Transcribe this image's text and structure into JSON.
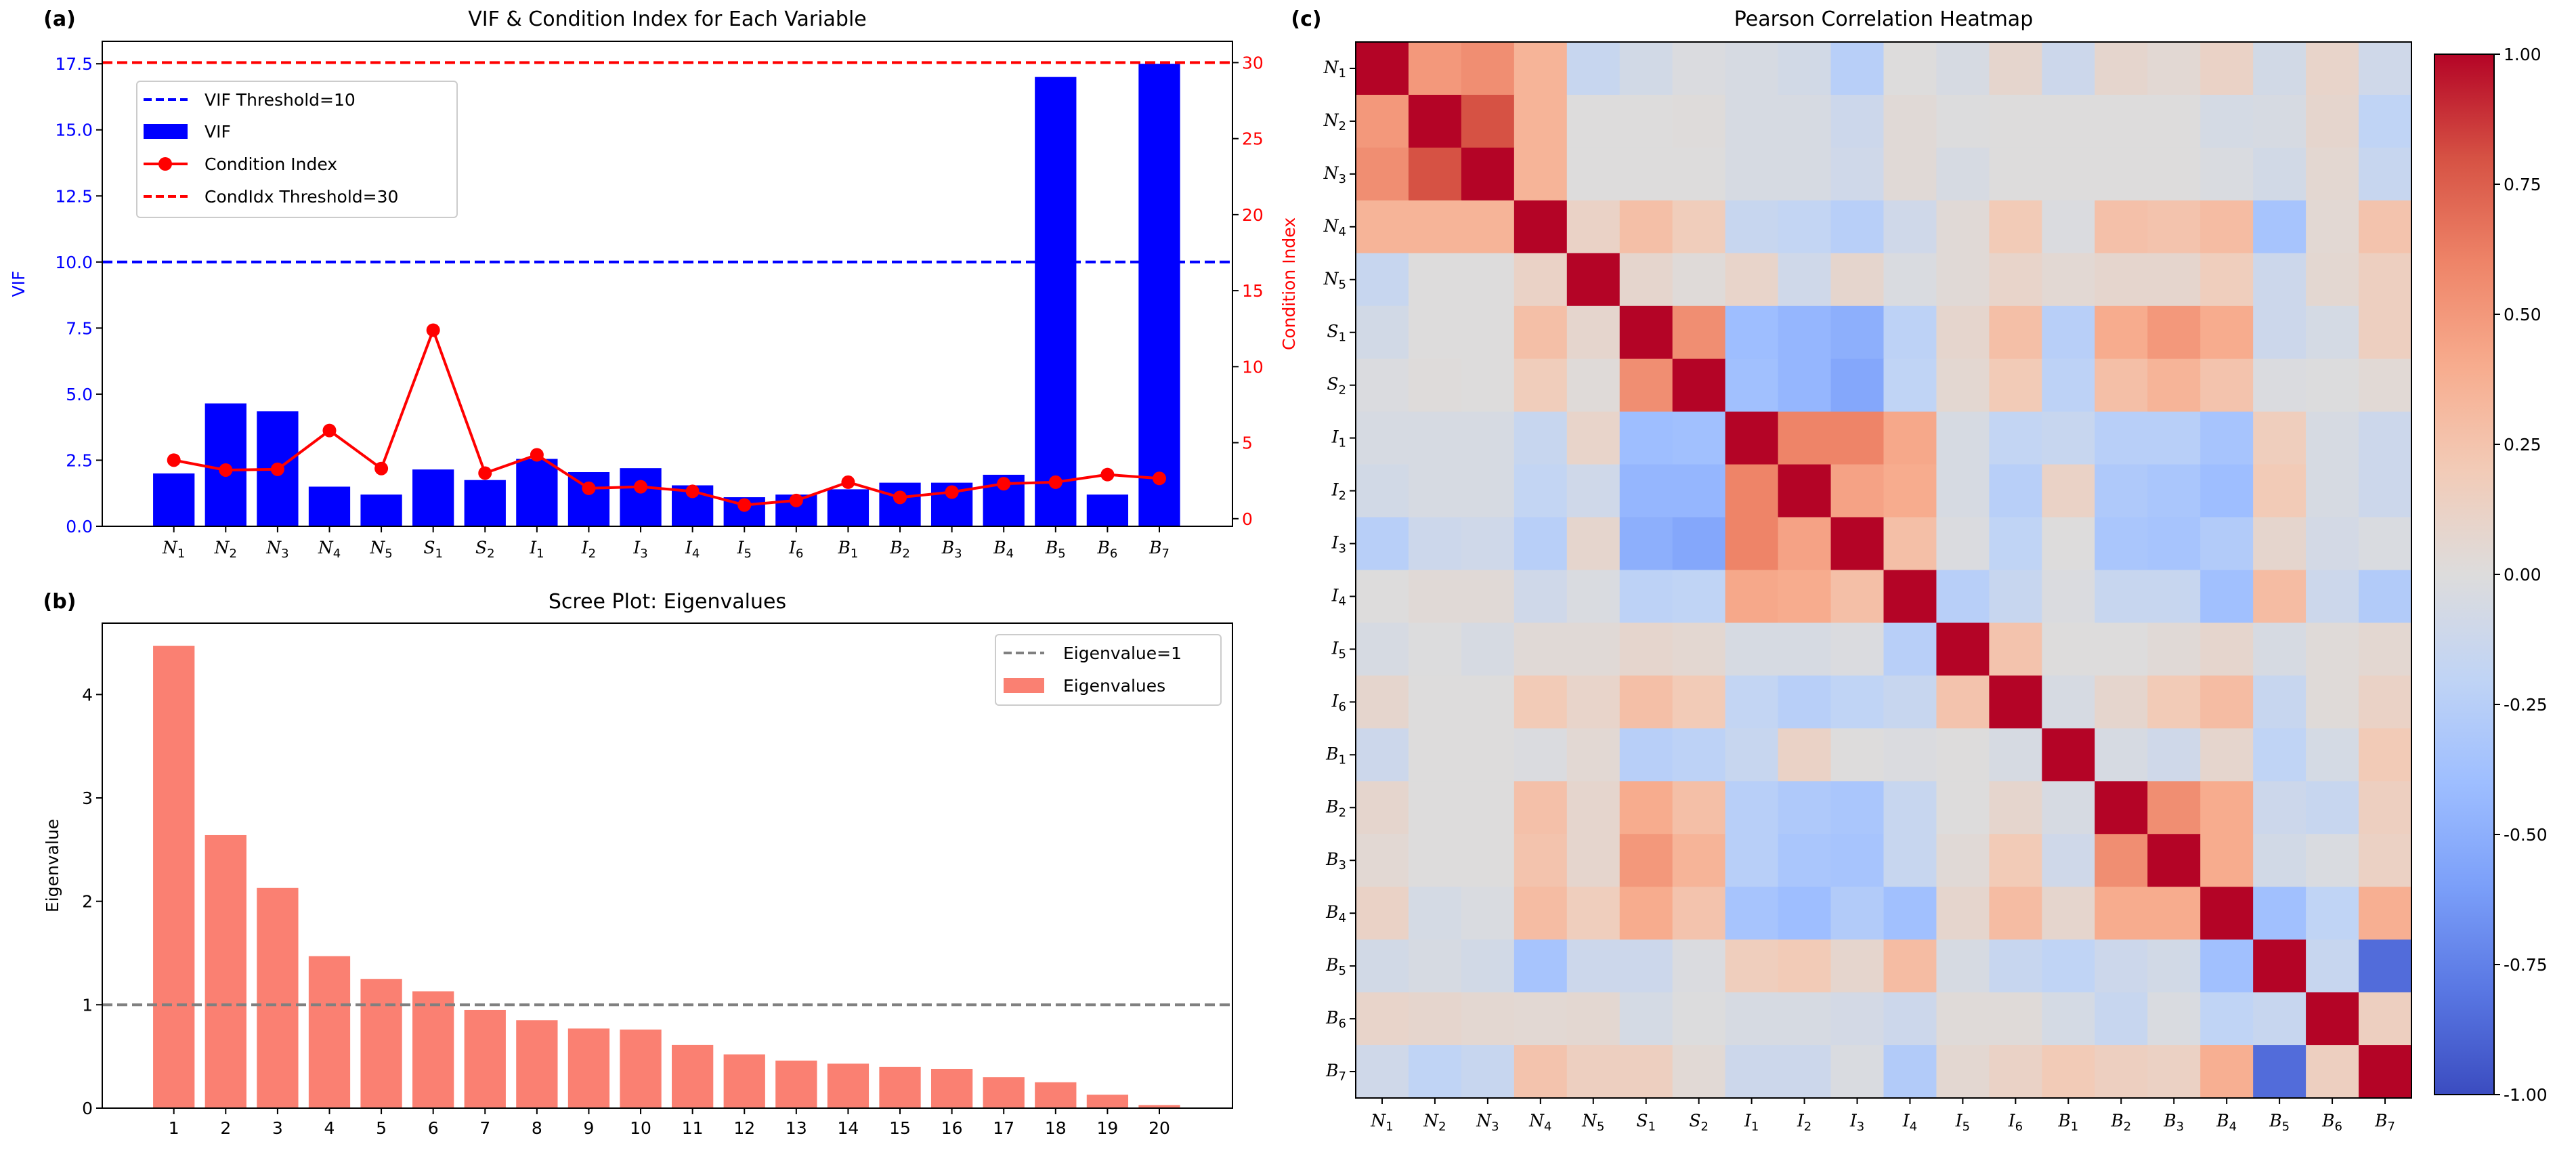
{
  "chart_data": [
    {
      "type": "bar+line",
      "panel_label": "(a)",
      "title": "VIF & Condition Index for Each Variable",
      "categories": [
        "N1",
        "N2",
        "N3",
        "N4",
        "N5",
        "S1",
        "S2",
        "I1",
        "I2",
        "I3",
        "I4",
        "I5",
        "I6",
        "B1",
        "B2",
        "B3",
        "B4",
        "B5",
        "B6",
        "B7"
      ],
      "series": [
        {
          "name": "VIF",
          "type": "bar",
          "axis": "left",
          "color": "#0000ff",
          "values": [
            2.0,
            4.65,
            4.35,
            1.5,
            1.2,
            2.15,
            1.75,
            2.55,
            2.05,
            2.2,
            1.55,
            1.1,
            1.2,
            1.4,
            1.65,
            1.65,
            1.95,
            17.0,
            1.2,
            17.5
          ]
        },
        {
          "name": "Condition Index",
          "type": "line",
          "axis": "right",
          "color": "#ff0000",
          "values": [
            3.85,
            3.2,
            3.25,
            5.8,
            3.3,
            12.4,
            3.0,
            4.2,
            2.0,
            2.1,
            1.8,
            0.9,
            1.2,
            2.4,
            1.4,
            1.75,
            2.3,
            2.4,
            2.9,
            2.65
          ]
        }
      ],
      "thresholds": [
        {
          "name": "VIF Threshold=10",
          "axis": "left",
          "value": 10,
          "color": "#0000ff"
        },
        {
          "name": "CondIdx Threshold=30",
          "axis": "right",
          "value": 30,
          "color": "#ff0000"
        }
      ],
      "legend": [
        "VIF Threshold=10",
        "VIF",
        "Condition Index",
        "CondIdx Threshold=30"
      ],
      "legend_position": "upper-left",
      "ylabel": "VIF",
      "ylabel_right": "Condition Index",
      "ylim": [
        0,
        18.35
      ],
      "ylim_right": [
        -0.5,
        31.4
      ],
      "yticks": [
        "0.0",
        "2.5",
        "5.0",
        "7.5",
        "10.0",
        "12.5",
        "15.0",
        "17.5"
      ],
      "yticks_right": [
        "0",
        "5",
        "10",
        "15",
        "20",
        "25",
        "30"
      ]
    },
    {
      "type": "bar",
      "panel_label": "(b)",
      "title": "Scree Plot: Eigenvalues",
      "categories": [
        "1",
        "2",
        "3",
        "4",
        "5",
        "6",
        "7",
        "8",
        "9",
        "10",
        "11",
        "12",
        "13",
        "14",
        "15",
        "16",
        "17",
        "18",
        "19",
        "20"
      ],
      "values": [
        4.47,
        2.64,
        2.13,
        1.47,
        1.25,
        1.13,
        0.95,
        0.85,
        0.77,
        0.76,
        0.61,
        0.52,
        0.46,
        0.43,
        0.4,
        0.38,
        0.3,
        0.25,
        0.13,
        0.03
      ],
      "color": "#fa8072",
      "reference": {
        "name": "Eigenvalue=1",
        "value": 1,
        "color": "#808080"
      },
      "legend": [
        "Eigenvalue=1",
        "Eigenvalues"
      ],
      "legend_position": "upper-right",
      "ylabel": "Eigenvalue",
      "ylim": [
        0,
        4.69
      ],
      "yticks": [
        "0",
        "1",
        "2",
        "3",
        "4"
      ]
    },
    {
      "type": "heatmap",
      "panel_label": "(c)",
      "title": "Pearson Correlation Heatmap",
      "colormap": "coolwarm",
      "labels": [
        "N1",
        "N2",
        "N3",
        "N4",
        "N5",
        "S1",
        "S2",
        "I1",
        "I2",
        "I3",
        "I4",
        "I5",
        "I6",
        "B1",
        "B2",
        "B3",
        "B4",
        "B5",
        "B6",
        "B7"
      ],
      "matrix": [
        [
          1,
          0.5,
          0.55,
          0.35,
          -0.15,
          -0.08,
          -0.02,
          -0.05,
          -0.08,
          -0.25,
          0,
          -0.05,
          0.08,
          -0.12,
          0.08,
          0.05,
          0.12,
          -0.08,
          0.1,
          -0.1
        ],
        [
          0.5,
          1,
          0.8,
          0.35,
          0,
          0,
          0.01,
          -0.05,
          -0.05,
          -0.12,
          0.03,
          -0.01,
          0,
          0,
          0,
          0,
          -0.06,
          -0.05,
          0.08,
          -0.2
        ],
        [
          0.55,
          0.8,
          1,
          0.35,
          0,
          0,
          0,
          -0.05,
          -0.05,
          -0.1,
          0.03,
          -0.05,
          0,
          0,
          0,
          0,
          -0.03,
          -0.08,
          0.06,
          -0.15
        ],
        [
          0.35,
          0.35,
          0.35,
          1,
          0.12,
          0.28,
          0.18,
          -0.15,
          -0.18,
          -0.25,
          -0.1,
          0.03,
          0.2,
          -0.02,
          0.27,
          0.25,
          0.3,
          -0.35,
          0.05,
          0.25
        ],
        [
          -0.15,
          0,
          0,
          0.12,
          1,
          0.08,
          0.02,
          0.1,
          -0.1,
          0.08,
          -0.03,
          0.03,
          0.1,
          0.05,
          0.08,
          0.08,
          0.17,
          -0.12,
          0.06,
          0.15
        ],
        [
          -0.08,
          0,
          0,
          0.28,
          0.08,
          1,
          0.55,
          -0.4,
          -0.45,
          -0.5,
          -0.22,
          0.08,
          0.28,
          -0.25,
          0.4,
          0.5,
          0.4,
          -0.12,
          -0.06,
          0.15
        ],
        [
          -0.02,
          0.01,
          0,
          0.18,
          0.02,
          0.55,
          1,
          -0.38,
          -0.45,
          -0.55,
          -0.2,
          0.06,
          0.2,
          -0.22,
          0.28,
          0.35,
          0.25,
          -0.02,
          -0.01,
          0.04
        ],
        [
          -0.05,
          -0.05,
          -0.05,
          -0.15,
          0.1,
          -0.4,
          -0.38,
          1,
          0.6,
          0.6,
          0.42,
          -0.05,
          -0.18,
          -0.15,
          -0.25,
          -0.25,
          -0.35,
          0.17,
          -0.05,
          -0.12
        ],
        [
          -0.08,
          -0.05,
          -0.05,
          -0.18,
          -0.1,
          -0.45,
          -0.45,
          0.6,
          1,
          0.45,
          0.4,
          -0.05,
          -0.25,
          0.12,
          -0.3,
          -0.33,
          -0.4,
          0.2,
          -0.05,
          -0.12
        ],
        [
          -0.25,
          -0.12,
          -0.1,
          -0.25,
          0.08,
          -0.5,
          -0.55,
          0.6,
          0.45,
          1,
          0.28,
          -0.02,
          -0.2,
          0,
          -0.33,
          -0.35,
          -0.28,
          0.08,
          -0.07,
          -0.03
        ],
        [
          0,
          0.03,
          0.03,
          -0.1,
          -0.03,
          -0.22,
          -0.2,
          0.42,
          0.4,
          0.28,
          1,
          -0.25,
          -0.15,
          -0.02,
          -0.15,
          -0.15,
          -0.38,
          0.3,
          -0.12,
          -0.28
        ],
        [
          -0.05,
          -0.01,
          -0.05,
          0.03,
          0.03,
          0.08,
          0.06,
          -0.05,
          -0.05,
          -0.02,
          -0.25,
          1,
          0.25,
          0,
          0,
          0.03,
          0.08,
          -0.05,
          0.02,
          0.06
        ],
        [
          0.08,
          0,
          0,
          0.2,
          0.1,
          0.28,
          0.2,
          -0.18,
          -0.25,
          -0.2,
          -0.15,
          0.25,
          1,
          -0.05,
          0.08,
          0.2,
          0.3,
          -0.15,
          0.02,
          0.12
        ],
        [
          -0.12,
          0,
          0,
          -0.02,
          0.05,
          -0.25,
          -0.22,
          -0.15,
          0.12,
          0,
          -0.02,
          0,
          -0.05,
          1,
          -0.05,
          -0.1,
          0.08,
          -0.2,
          -0.06,
          0.2
        ],
        [
          0.08,
          0,
          0,
          0.27,
          0.08,
          0.4,
          0.28,
          -0.25,
          -0.3,
          -0.33,
          -0.15,
          0,
          0.08,
          -0.05,
          1,
          0.55,
          0.4,
          -0.12,
          -0.15,
          0.15
        ],
        [
          0.05,
          0,
          0,
          0.25,
          0.08,
          0.5,
          0.35,
          -0.25,
          -0.33,
          -0.35,
          -0.15,
          0.03,
          0.2,
          -0.1,
          0.55,
          1,
          0.4,
          -0.08,
          -0.03,
          0.13
        ],
        [
          0.12,
          -0.06,
          -0.03,
          0.3,
          0.17,
          0.4,
          0.25,
          -0.35,
          -0.4,
          -0.28,
          -0.38,
          0.08,
          0.3,
          0.08,
          0.4,
          0.4,
          1,
          -0.38,
          -0.2,
          0.38
        ],
        [
          -0.08,
          -0.05,
          -0.08,
          -0.35,
          -0.12,
          -0.12,
          -0.02,
          0.17,
          0.2,
          0.08,
          0.3,
          -0.05,
          -0.15,
          -0.2,
          -0.12,
          -0.08,
          -0.38,
          1,
          -0.15,
          -0.85
        ],
        [
          0.1,
          0.08,
          0.06,
          0.05,
          0.06,
          -0.06,
          -0.01,
          -0.05,
          -0.05,
          -0.07,
          -0.12,
          0.02,
          0.02,
          -0.06,
          -0.15,
          -0.03,
          -0.2,
          -0.15,
          1,
          0.15
        ],
        [
          -0.1,
          -0.2,
          -0.15,
          0.25,
          0.15,
          0.15,
          0.04,
          -0.12,
          -0.12,
          -0.03,
          -0.28,
          0.06,
          0.12,
          0.2,
          0.15,
          0.13,
          0.38,
          -0.85,
          0.15,
          1
        ]
      ],
      "colorbar": {
        "min": -1,
        "max": 1,
        "ticks": [
          "1.00",
          "0.75",
          "0.50",
          "0.25",
          "0.00",
          "-0.25",
          "-0.50",
          "-0.75",
          "-1.00"
        ]
      }
    }
  ]
}
